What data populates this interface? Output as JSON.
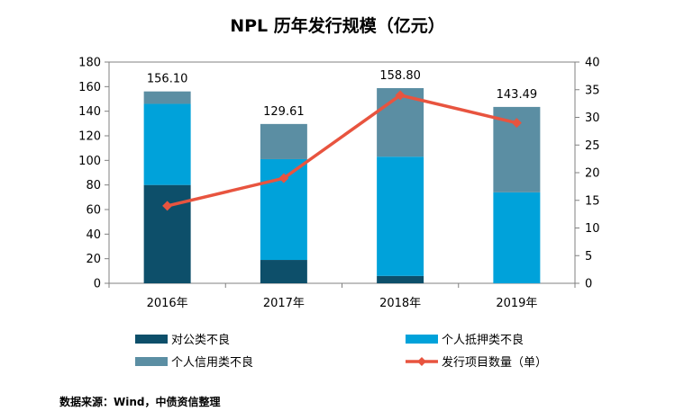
{
  "chart_data": {
    "type": "bar",
    "title": "NPL 历年发行规模（亿元）",
    "categories": [
      "2016年",
      "2017年",
      "2018年",
      "2019年"
    ],
    "stacked": true,
    "series": [
      {
        "name": "对公类不良",
        "kind": "bar",
        "axis": "left",
        "color": "#0d4f6a",
        "values": [
          80,
          19,
          6,
          0
        ]
      },
      {
        "name": "个人抵押类不良",
        "kind": "bar",
        "axis": "left",
        "color": "#00a2da",
        "values": [
          66,
          82,
          97,
          74
        ]
      },
      {
        "name": "个人信用类不良",
        "kind": "bar",
        "axis": "left",
        "color": "#5b8ea3",
        "values": [
          10.1,
          28.61,
          55.8,
          69.49
        ]
      },
      {
        "name": "发行项目数量（单）",
        "kind": "line",
        "axis": "right",
        "color": "#e8543f",
        "values": [
          14,
          19,
          34,
          29
        ]
      }
    ],
    "totals": [
      "156.10",
      "129.61",
      "158.80",
      "143.49"
    ],
    "y_left": {
      "min": 0,
      "max": 180,
      "ticks": [
        "0",
        "20",
        "40",
        "60",
        "80",
        "100",
        "120",
        "140",
        "160",
        "180"
      ]
    },
    "y_right": {
      "min": 0,
      "max": 40,
      "ticks": [
        "0",
        "5",
        "10",
        "15",
        "20",
        "25",
        "30",
        "35",
        "40"
      ]
    },
    "grid": false,
    "legend_position": "bottom"
  },
  "source_note": "数据来源：Wind，中债资信整理"
}
